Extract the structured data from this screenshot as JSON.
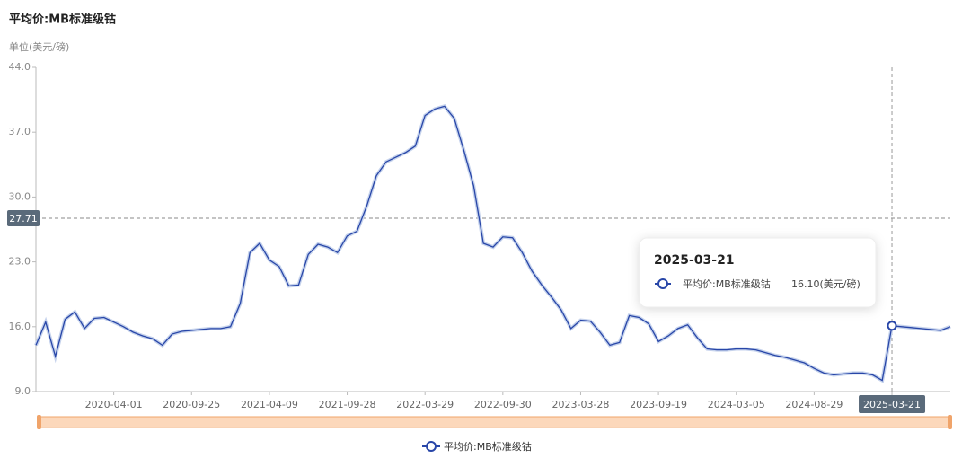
{
  "chart_data": {
    "type": "line",
    "title": "平均价:MB标准级钴",
    "y_label": "单位(美元/磅)",
    "categories": [
      null,
      null,
      null,
      null,
      null,
      null,
      null,
      null,
      "2020-04-01",
      null,
      null,
      null,
      null,
      null,
      null,
      null,
      "2020-09-25",
      null,
      null,
      null,
      null,
      null,
      null,
      null,
      "2021-04-09",
      null,
      null,
      null,
      null,
      null,
      null,
      null,
      "2021-09-28",
      null,
      null,
      null,
      null,
      null,
      null,
      null,
      "2022-03-29",
      null,
      null,
      null,
      null,
      null,
      null,
      null,
      "2022-09-30",
      null,
      null,
      null,
      null,
      null,
      null,
      null,
      "2023-03-28",
      null,
      null,
      null,
      null,
      null,
      null,
      null,
      "2023-09-19",
      null,
      null,
      null,
      null,
      null,
      null,
      null,
      "2024-03-05",
      null,
      null,
      null,
      null,
      null,
      null,
      null,
      "2024-08-29",
      null,
      null,
      null,
      null,
      null,
      null,
      null,
      "2025-03-21",
      null,
      null,
      null,
      null,
      null,
      null
    ],
    "series": [
      {
        "name": "平均价:MB标准级钴",
        "color": "#2846a8",
        "values": [
          14.0,
          16.5,
          12.8,
          16.8,
          17.6,
          15.8,
          16.9,
          17.0,
          16.5,
          16.0,
          15.4,
          15.0,
          14.7,
          14.0,
          15.2,
          15.5,
          15.6,
          15.7,
          15.8,
          15.8,
          16.0,
          18.5,
          24.0,
          25.0,
          23.2,
          22.5,
          20.4,
          20.5,
          23.8,
          24.9,
          24.6,
          24.0,
          25.8,
          26.3,
          29.0,
          32.3,
          33.8,
          34.3,
          34.8,
          35.5,
          38.8,
          39.5,
          39.8,
          38.5,
          35.0,
          31.2,
          25.0,
          24.6,
          25.7,
          25.6,
          24.0,
          22.0,
          20.5,
          19.2,
          17.8,
          15.8,
          16.7,
          16.6,
          15.4,
          14.0,
          14.3,
          17.2,
          17.0,
          16.3,
          14.4,
          15.0,
          15.8,
          16.2,
          14.8,
          13.6,
          13.5,
          13.5,
          13.6,
          13.6,
          13.5,
          13.2,
          12.9,
          12.7,
          12.4,
          12.1,
          11.5,
          11.0,
          10.8,
          10.9,
          11.0,
          11.0,
          10.8,
          10.2,
          16.1,
          16.0,
          15.9,
          15.8,
          15.7,
          15.6,
          16.0
        ]
      }
    ],
    "ylim": [
      9,
      44
    ],
    "yticks": [
      {
        "value": 9,
        "label": "9.0"
      },
      {
        "value": 16,
        "label": "16.0"
      },
      {
        "value": 23,
        "label": "23.0"
      },
      {
        "value": 30,
        "label": "30.0"
      },
      {
        "value": 37,
        "label": "37.0"
      },
      {
        "value": 44,
        "label": "44.0"
      }
    ],
    "reference_line": {
      "value": 27.71
    },
    "tooltip": {
      "title": "2025-03-21",
      "value_label": "16.10(美元/磅)"
    }
  }
}
